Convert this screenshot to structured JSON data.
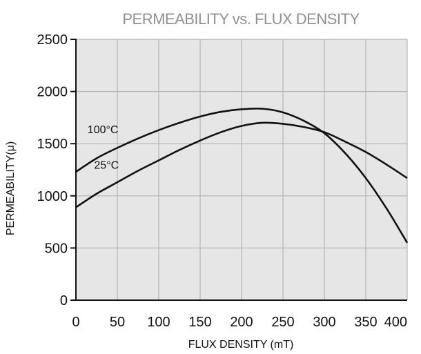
{
  "chart_data": {
    "type": "line",
    "title": "PERMEABILITY vs. FLUX DENSITY",
    "xlabel": "FLUX DENSITY (mT)",
    "ylabel": "PERMEABILITY(μ)",
    "xlim": [
      0,
      400
    ],
    "ylim": [
      0,
      2500
    ],
    "x_ticks": [
      "0",
      "50",
      "100",
      "150",
      "200",
      "250",
      "300",
      "350",
      "400"
    ],
    "y_ticks": [
      "0",
      "500",
      "1000",
      "1500",
      "2000",
      "2500"
    ],
    "grid": true,
    "legend": "inline labels",
    "colors": {
      "plot_background": "#e6e6e6",
      "grid": "#b4b4b4",
      "line": "#111111",
      "title": "#8c948c"
    },
    "series": [
      {
        "name": "100°C",
        "x": [
          0,
          25,
          50,
          75,
          100,
          125,
          150,
          175,
          200,
          225,
          250,
          275,
          300,
          325,
          350,
          375,
          400
        ],
        "y": [
          1230,
          1360,
          1460,
          1550,
          1630,
          1700,
          1760,
          1805,
          1830,
          1835,
          1800,
          1720,
          1600,
          1410,
          1170,
          880,
          550
        ]
      },
      {
        "name": "25°C",
        "x": [
          0,
          25,
          50,
          75,
          100,
          125,
          150,
          175,
          200,
          225,
          250,
          275,
          300,
          325,
          350,
          375,
          400
        ],
        "y": [
          890,
          1020,
          1130,
          1240,
          1340,
          1440,
          1530,
          1610,
          1670,
          1700,
          1690,
          1660,
          1610,
          1520,
          1420,
          1300,
          1170
        ]
      }
    ]
  }
}
